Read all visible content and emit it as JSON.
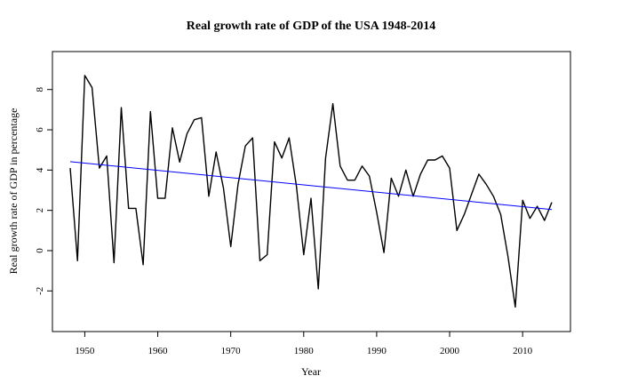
{
  "chart_data": {
    "type": "line",
    "title": "Real growth rate of GDP of the USA 1948-2014",
    "xlabel": "Year",
    "ylabel": "Real growth rate of GDP in percentage",
    "xlim": [
      1948,
      2014
    ],
    "ylim": [
      -3.4,
      9.4
    ],
    "x_ticks": [
      1950,
      1960,
      1970,
      1980,
      1990,
      2000,
      2010
    ],
    "y_ticks": [
      -2,
      0,
      2,
      4,
      6,
      8
    ],
    "grid": false,
    "legend": "none",
    "colors": {
      "series": "#000000",
      "trend": "#0000ff"
    },
    "series": [
      {
        "x": [
          1948,
          1949,
          1950,
          1951,
          1952,
          1953,
          1954,
          1955,
          1956,
          1957,
          1958,
          1959,
          1960,
          1961,
          1962,
          1963,
          1964,
          1965,
          1966,
          1967,
          1968,
          1969,
          1970,
          1971,
          1972,
          1973,
          1974,
          1975,
          1976,
          1977,
          1978,
          1979,
          1980,
          1981,
          1982,
          1983,
          1984,
          1985,
          1986,
          1987,
          1988,
          1989,
          1990,
          1991,
          1992,
          1993,
          1994,
          1995,
          1996,
          1997,
          1998,
          1999,
          2000,
          2001,
          2002,
          2003,
          2004,
          2005,
          2006,
          2007,
          2008,
          2009,
          2010,
          2011,
          2012,
          2013,
          2014
        ],
        "values": [
          4.1,
          -0.5,
          8.7,
          8.1,
          4.1,
          4.7,
          -0.6,
          7.1,
          2.1,
          2.1,
          -0.7,
          6.9,
          2.6,
          2.6,
          6.1,
          4.4,
          5.8,
          6.5,
          6.6,
          2.7,
          4.9,
          3.1,
          0.2,
          3.3,
          5.2,
          5.6,
          -0.5,
          -0.2,
          5.4,
          4.6,
          5.6,
          3.2,
          -0.2,
          2.6,
          -1.9,
          4.6,
          7.3,
          4.2,
          3.5,
          3.5,
          4.2,
          3.7,
          1.9,
          -0.1,
          3.6,
          2.7,
          4.0,
          2.7,
          3.8,
          4.5,
          4.5,
          4.7,
          4.1,
          1.0,
          1.8,
          2.8,
          3.8,
          3.3,
          2.7,
          1.8,
          -0.3,
          -2.8,
          2.5,
          1.6,
          2.2,
          1.5,
          2.4
        ]
      }
    ],
    "trend": {
      "x": [
        1948,
        2014
      ],
      "values": [
        4.42,
        2.04
      ]
    }
  }
}
